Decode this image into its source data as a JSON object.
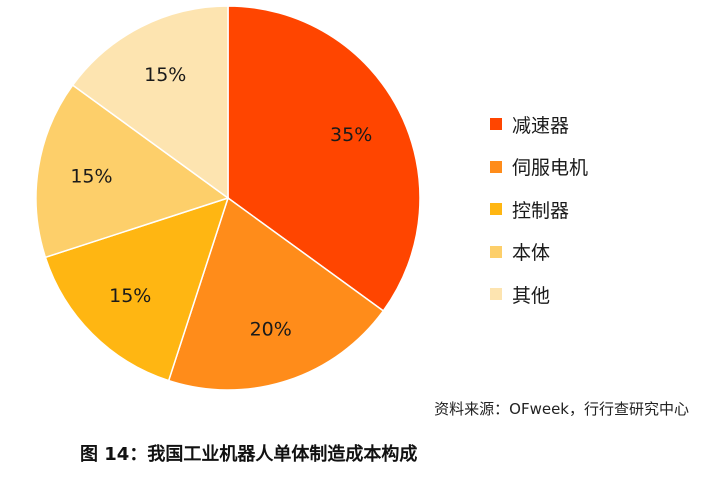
{
  "chart_data": {
    "type": "pie",
    "categories": [
      "减速器",
      "伺服电机",
      "控制器",
      "本体",
      "其他"
    ],
    "values": [
      35,
      20,
      15,
      15,
      15
    ],
    "value_labels": [
      "35%",
      "20%",
      "15%",
      "15%",
      "15%"
    ],
    "colors": [
      "#FF4500",
      "#FF8C1A",
      "#FFB612",
      "#FDCF6A",
      "#FDE4B0"
    ],
    "start_angle_deg": 0,
    "direction": "clockwise",
    "legend_position": "right",
    "title": ""
  },
  "source_note": "资料来源：OFweek，行行查研究中心",
  "caption": "图 14：我国工业机器人单体制造成本构成"
}
